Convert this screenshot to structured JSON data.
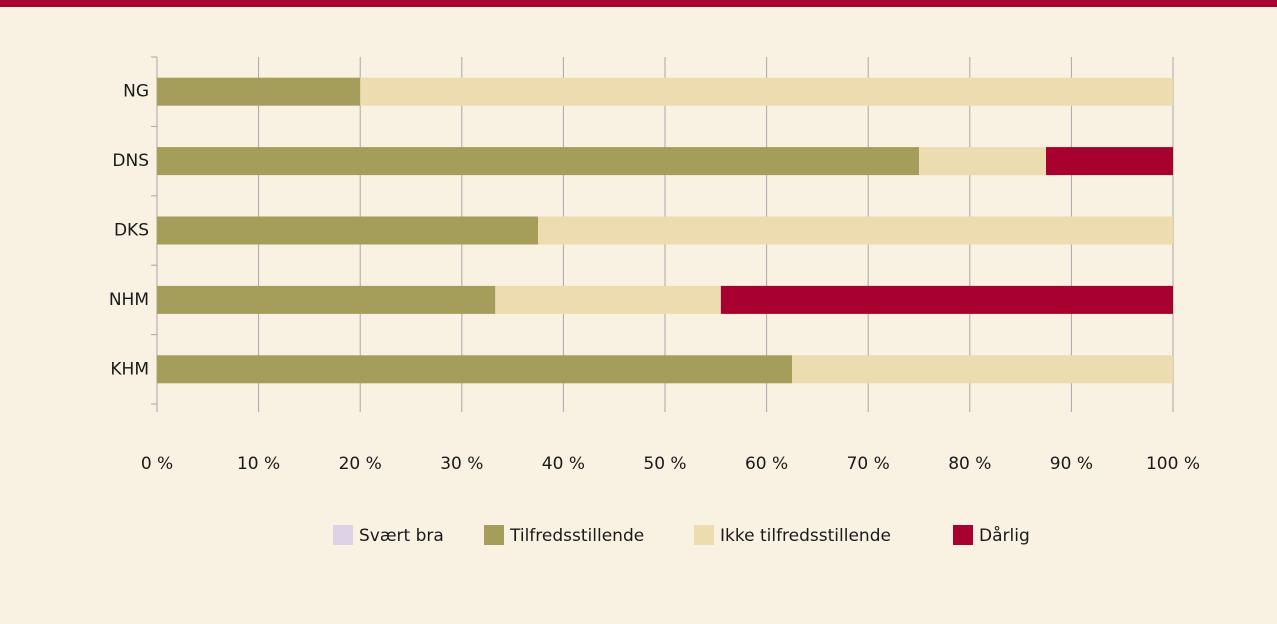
{
  "chart_data": {
    "type": "stacked-barh",
    "categories": [
      "NG",
      "DNS",
      "DKS",
      "NHM",
      "KHM"
    ],
    "series": [
      {
        "name": "Svært bra",
        "color": "#dcd3e6",
        "values": [
          0,
          0,
          0,
          0,
          0
        ]
      },
      {
        "name": "Tilfredsstillende",
        "color": "#a59d5a",
        "values": [
          20,
          75,
          37.5,
          33.3,
          62.5
        ]
      },
      {
        "name": "Ikke tilfredsstillende",
        "color": "#eddcb0",
        "values": [
          80,
          12.5,
          62.5,
          22.2,
          37.5
        ]
      },
      {
        "name": "Dårlig",
        "color": "#a8002f",
        "values": [
          0,
          12.5,
          0,
          44.5,
          0
        ]
      }
    ],
    "xlim": [
      0,
      100
    ],
    "xticks": [
      {
        "value": 0,
        "label": "0 %"
      },
      {
        "value": 10,
        "label": "10 %"
      },
      {
        "value": 20,
        "label": "20 %"
      },
      {
        "value": 30,
        "label": "30 %"
      },
      {
        "value": 40,
        "label": "40 %"
      },
      {
        "value": 50,
        "label": "50 %"
      },
      {
        "value": 60,
        "label": "60 %"
      },
      {
        "value": 70,
        "label": "70 %"
      },
      {
        "value": 80,
        "label": "80 %"
      },
      {
        "value": 90,
        "label": "90 %"
      },
      {
        "value": 100,
        "label": "100 %"
      }
    ],
    "grid": true,
    "legend": "bottom"
  }
}
